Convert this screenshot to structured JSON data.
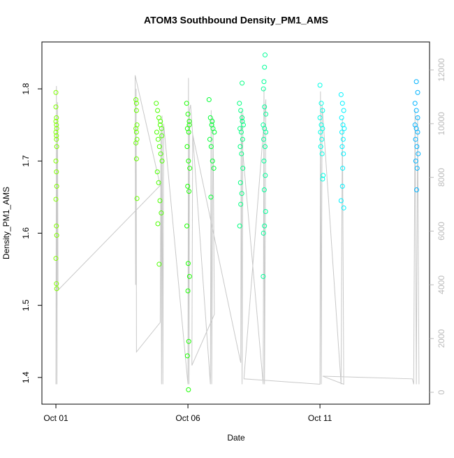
{
  "chart_data": {
    "type": "scatter",
    "title": "ATOM3 Southbound Density_PM1_AMS",
    "x_label": "Date",
    "y_label": "Density_PM1_AMS",
    "xlim": [
      -0.53,
      14.15
    ],
    "xticks": [
      {
        "value": 0,
        "label": "Oct 01"
      },
      {
        "value": 5,
        "label": "Oct 06"
      },
      {
        "value": 10,
        "label": "Oct 11"
      }
    ],
    "ylim": [
      1.363,
      1.865
    ],
    "yticks": [
      1.4,
      1.5,
      1.6,
      1.7,
      1.8
    ],
    "y2lim": [
      -442,
      13041
    ],
    "y2ticks": [
      0,
      2000,
      4000,
      6000,
      8000,
      10000,
      12000
    ],
    "series": [
      {
        "type": "line",
        "axis": "y2",
        "color": "#c8c8c8",
        "x": [
          0.0,
          0.02,
          0.04,
          0.06,
          0.08,
          3.95,
          3.0,
          3.02,
          3.04,
          3.05,
          3.95,
          3.98,
          4.0,
          4.02,
          4.05,
          4.08,
          5.0,
          5.02,
          5.04,
          5.06,
          5.1,
          5.85,
          5.88,
          5.9,
          5.95,
          6.0,
          5.15,
          5.18,
          7.0,
          7.02,
          7.05,
          7.08,
          7.0,
          7.85,
          7.88,
          7.9,
          7.95,
          7.12,
          10.0,
          10.02,
          10.05,
          10.08,
          10.8,
          10.85,
          10.9,
          10.1,
          13.5,
          13.55,
          13.6,
          13.65,
          13.7,
          13.75
        ],
        "values": [
          300,
          11400,
          300,
          10800,
          3800,
          7700,
          11800,
          4000,
          11300,
          1500,
          2600,
          9800,
          300,
          10300,
          300,
          10000,
          300,
          11700,
          300,
          10500,
          10700,
          300,
          10500,
          300,
          10200,
          2900,
          1000,
          9600,
          1100,
          10500,
          300,
          10400,
          9800,
          300,
          11300,
          300,
          10900,
          500,
          300,
          11200,
          300,
          10700,
          300,
          10200,
          300,
          600,
          500,
          300,
          10500,
          300,
          10300,
          300
        ]
      },
      {
        "color": "#80ff00",
        "x": [
          0,
          0,
          0.02,
          0.02,
          0.03,
          0,
          0.02,
          0.03,
          0,
          0.02,
          0.03,
          0,
          0.02,
          0.03,
          0,
          0.02,
          0.03,
          0,
          0.02
        ],
        "values": [
          1.795,
          1.775,
          1.76,
          1.75,
          1.745,
          1.74,
          1.73,
          1.72,
          1.7,
          1.685,
          1.665,
          1.647,
          1.61,
          1.597,
          1.565,
          1.53,
          1.523,
          1.755,
          1.735
        ]
      },
      {
        "color": "#66ff00",
        "x": [
          3.03,
          3.05,
          3.07,
          3.03,
          3.05,
          3.07,
          3.03,
          3.05,
          3.07,
          3.05
        ],
        "values": [
          1.785,
          1.77,
          1.75,
          1.745,
          1.74,
          1.73,
          1.725,
          1.703,
          1.648,
          1.78
        ]
      },
      {
        "color": "#4cff00",
        "x": [
          3.8,
          3.85,
          3.9,
          3.95,
          4.0,
          3.82,
          3.87,
          3.92,
          3.97,
          4.02,
          3.84,
          3.89,
          3.94,
          3.99,
          3.86,
          3.91,
          3.96,
          4.01
        ],
        "values": [
          1.78,
          1.77,
          1.76,
          1.75,
          1.745,
          1.74,
          1.73,
          1.72,
          1.71,
          1.7,
          1.685,
          1.67,
          1.645,
          1.628,
          1.613,
          1.557,
          1.755,
          1.735
        ]
      },
      {
        "color": "#1aff00",
        "x": [
          4.95,
          5.0,
          5.05,
          4.98,
          5.03,
          4.97,
          5.02,
          5.07,
          4.99,
          5.04,
          4.96,
          5.01,
          5.06,
          5.0,
          5.03,
          4.98,
          5.02,
          5.05
        ],
        "values": [
          1.78,
          1.765,
          1.75,
          1.745,
          1.74,
          1.72,
          1.7,
          1.69,
          1.665,
          1.658,
          1.61,
          1.558,
          1.54,
          1.52,
          1.45,
          1.43,
          1.383,
          1.755
        ]
      },
      {
        "color": "#00ff33",
        "x": [
          5.8,
          5.85,
          5.9,
          5.95,
          6.0,
          5.83,
          5.88,
          5.93,
          5.98,
          5.87,
          5.92
        ],
        "values": [
          1.785,
          1.76,
          1.75,
          1.745,
          1.74,
          1.73,
          1.72,
          1.7,
          1.69,
          1.65,
          1.755
        ]
      },
      {
        "color": "#00ff80",
        "x": [
          7.05,
          6.95,
          7.0,
          7.05,
          7.1,
          6.97,
          7.02,
          7.07,
          6.98,
          7.03,
          7.08,
          6.99,
          7.04,
          7.0,
          6.96,
          7.06
        ],
        "values": [
          1.808,
          1.78,
          1.77,
          1.76,
          1.75,
          1.745,
          1.74,
          1.73,
          1.72,
          1.71,
          1.69,
          1.67,
          1.655,
          1.64,
          1.61,
          1.755
        ]
      },
      {
        "color": "#00ff99",
        "x": [
          7.92,
          7.9,
          7.88,
          7.86,
          7.9,
          7.95,
          7.85,
          7.9,
          7.95,
          7.87,
          7.92,
          7.88,
          7.93,
          7.89,
          7.94,
          7.9,
          7.86,
          7.85
        ],
        "values": [
          1.847,
          1.83,
          1.81,
          1.8,
          1.775,
          1.765,
          1.75,
          1.745,
          1.74,
          1.73,
          1.72,
          1.7,
          1.68,
          1.66,
          1.63,
          1.61,
          1.6,
          1.54
        ]
      },
      {
        "color": "#00ffe6",
        "x": [
          10.0,
          10.05,
          10.1,
          10.0,
          10.05,
          10.1,
          10.02,
          10.07,
          10.03,
          10.08,
          10.12,
          10.1
        ],
        "values": [
          1.805,
          1.78,
          1.77,
          1.76,
          1.75,
          1.745,
          1.74,
          1.73,
          1.72,
          1.71,
          1.68,
          1.675
        ]
      },
      {
        "color": "#00f2ff",
        "x": [
          10.8,
          10.85,
          10.9,
          10.82,
          10.87,
          10.92,
          10.83,
          10.88,
          10.84,
          10.89,
          10.86,
          10.85,
          10.8,
          10.9
        ],
        "values": [
          1.792,
          1.78,
          1.77,
          1.76,
          1.75,
          1.745,
          1.74,
          1.73,
          1.72,
          1.71,
          1.69,
          1.665,
          1.645,
          1.635
        ]
      },
      {
        "color": "#00b3ff",
        "x": [
          13.65,
          13.7,
          13.6,
          13.65,
          13.7,
          13.6,
          13.65,
          13.7,
          13.62,
          13.67,
          13.72,
          13.63,
          13.68,
          13.66
        ],
        "values": [
          1.81,
          1.795,
          1.78,
          1.77,
          1.76,
          1.75,
          1.745,
          1.74,
          1.73,
          1.72,
          1.71,
          1.7,
          1.69,
          1.66
        ]
      }
    ]
  }
}
